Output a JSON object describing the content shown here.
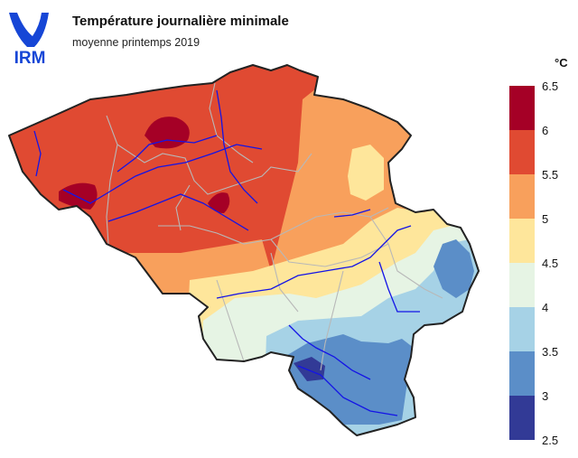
{
  "header": {
    "logo_text": "IRM",
    "title": "Température journalière minimale",
    "subtitle": "moyenne printemps 2019"
  },
  "legend": {
    "unit": "°C",
    "ticks": [
      "6.5",
      "6",
      "5.5",
      "5",
      "4.5",
      "4",
      "3.5",
      "3",
      "2.5"
    ],
    "bins": [
      {
        "min": 6.0,
        "max": 6.5,
        "color": "#a50026"
      },
      {
        "min": 5.5,
        "max": 6.0,
        "color": "#e04a32"
      },
      {
        "min": 5.0,
        "max": 5.5,
        "color": "#f8a05c"
      },
      {
        "min": 4.5,
        "max": 5.0,
        "color": "#fee69b"
      },
      {
        "min": 4.0,
        "max": 4.5,
        "color": "#e6f4e4"
      },
      {
        "min": 3.5,
        "max": 4.0,
        "color": "#a6d2e6"
      },
      {
        "min": 3.0,
        "max": 3.5,
        "color": "#5b8ec8"
      },
      {
        "min": 2.5,
        "max": 3.0,
        "color": "#323a96"
      }
    ]
  },
  "colors": {
    "logo_blue": "#1646d6",
    "border": "#222222",
    "province_border": "#b8b8b8",
    "river": "#1414e6"
  }
}
